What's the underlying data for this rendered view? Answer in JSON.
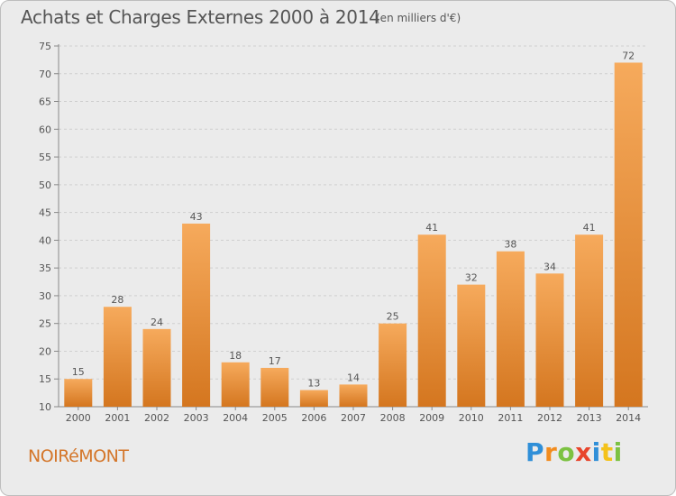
{
  "chart_data": {
    "type": "bar",
    "title": "Achats et Charges Externes 2000 à 2014",
    "subtitle": "(en milliers d'€)",
    "categories": [
      "2000",
      "2001",
      "2002",
      "2003",
      "2004",
      "2005",
      "2006",
      "2007",
      "2008",
      "2009",
      "2010",
      "2011",
      "2012",
      "2013",
      "2014"
    ],
    "values": [
      15,
      28,
      24,
      43,
      18,
      17,
      13,
      14,
      25,
      41,
      32,
      38,
      34,
      41,
      72
    ],
    "ylim": [
      10,
      75
    ],
    "yticks": [
      10,
      15,
      20,
      25,
      30,
      35,
      40,
      45,
      50,
      55,
      60,
      65,
      70,
      75
    ],
    "grid": true,
    "data_labels": true,
    "bar_color_top": "#f6aa5c",
    "bar_color_bottom": "#d4761f"
  },
  "footer": {
    "town": "NOIRéMONT",
    "logo_letters": [
      {
        "ch": "P",
        "color": "#2f8fd8"
      },
      {
        "ch": "r",
        "color": "#f28c1e"
      },
      {
        "ch": "o",
        "color": "#7cc242"
      },
      {
        "ch": "x",
        "color": "#e8452c"
      },
      {
        "ch": "i",
        "color": "#2f8fd8"
      },
      {
        "ch": "t",
        "color": "#f4c21a"
      },
      {
        "ch": "i",
        "color": "#7cc242"
      }
    ]
  }
}
